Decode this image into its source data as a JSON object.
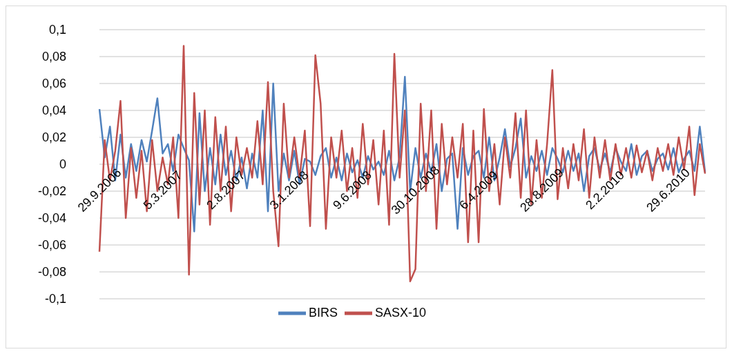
{
  "chart_data": {
    "type": "line",
    "categories": [
      "29.9.2006",
      null,
      null,
      null,
      null,
      null,
      null,
      null,
      null,
      null,
      null,
      null,
      "5.3.2007",
      null,
      null,
      null,
      null,
      null,
      null,
      null,
      null,
      null,
      null,
      null,
      "2.8.2007",
      null,
      null,
      null,
      null,
      null,
      null,
      null,
      null,
      null,
      null,
      null,
      "3.1.2008",
      null,
      null,
      null,
      null,
      null,
      null,
      null,
      null,
      null,
      null,
      null,
      "9.6.2008",
      null,
      null,
      null,
      null,
      null,
      null,
      null,
      null,
      null,
      null,
      null,
      "30.10.2008",
      null,
      null,
      null,
      null,
      null,
      null,
      null,
      null,
      null,
      null,
      null,
      "6.4.2009",
      null,
      null,
      null,
      null,
      null,
      null,
      null,
      null,
      null,
      null,
      null,
      "28.8.2009",
      null,
      null,
      null,
      null,
      null,
      null,
      null,
      null,
      null,
      null,
      null,
      "2.2.2010",
      null,
      null,
      null,
      null,
      null,
      null,
      null,
      null,
      null,
      null,
      null,
      "29.6.2010",
      null,
      null,
      null,
      null,
      null,
      null,
      null
    ],
    "series": [
      {
        "name": "BIRS",
        "color": "#4f81bd",
        "values": [
          0.041,
          0.005,
          0.028,
          -0.012,
          0.022,
          -0.01,
          0.015,
          -0.005,
          0.018,
          0.002,
          0.025,
          0.049,
          0.008,
          0.015,
          -0.005,
          0.022,
          0.012,
          0.003,
          -0.05,
          0.038,
          -0.02,
          0.012,
          -0.015,
          0.022,
          -0.008,
          0.01,
          -0.012,
          0.005,
          -0.018,
          0.008,
          -0.01,
          0.04,
          -0.035,
          0.06,
          -0.02,
          0.008,
          -0.012,
          0.01,
          -0.015,
          0.004,
          0.002,
          -0.008,
          0.006,
          0.012,
          -0.01,
          0.005,
          -0.012,
          0.008,
          -0.006,
          0.003,
          -0.01,
          0.006,
          -0.004,
          0.002,
          -0.008,
          0.01,
          -0.012,
          0.005,
          0.065,
          -0.02,
          0.012,
          -0.01,
          0.008,
          -0.006,
          0.015,
          -0.02,
          0.004,
          0.008,
          -0.048,
          0.012,
          -0.008,
          0.006,
          0.01,
          -0.01,
          0.02,
          -0.012,
          0.005,
          0.026,
          -0.002,
          0.012,
          0.034,
          -0.01,
          0.006,
          -0.005,
          0.01,
          -0.008,
          0.012,
          0.004,
          -0.006,
          0.01,
          -0.005,
          0.008,
          -0.02,
          0.006,
          0.012,
          -0.004,
          0.008,
          -0.006,
          0.012,
          0.002,
          -0.005,
          0.015,
          -0.008,
          0.006,
          0.01,
          -0.005,
          0.004,
          0.008,
          -0.004,
          0.012,
          -0.006,
          0.004,
          0.01,
          -0.005,
          0.028,
          -0.006
        ]
      },
      {
        "name": "SASX-10",
        "color": "#c0504d",
        "values": [
          -0.065,
          0.018,
          -0.012,
          0.01,
          0.047,
          -0.04,
          0.012,
          -0.025,
          0.01,
          -0.035,
          0.018,
          -0.02,
          0.005,
          -0.015,
          0.02,
          -0.04,
          0.088,
          -0.082,
          0.053,
          -0.03,
          0.04,
          -0.045,
          0.035,
          -0.02,
          0.028,
          -0.035,
          0.02,
          -0.008,
          0.012,
          -0.01,
          0.032,
          -0.015,
          0.061,
          -0.02,
          -0.061,
          0.045,
          -0.01,
          0.02,
          -0.01,
          0.025,
          -0.046,
          0.081,
          0.045,
          -0.048,
          0.02,
          -0.01,
          0.025,
          -0.02,
          0.012,
          -0.025,
          0.03,
          -0.015,
          0.018,
          -0.03,
          0.025,
          -0.045,
          0.082,
          -0.01,
          0.04,
          -0.087,
          -0.078,
          0.045,
          -0.02,
          0.04,
          -0.048,
          0.03,
          -0.015,
          0.02,
          -0.01,
          0.03,
          -0.058,
          0.025,
          -0.058,
          0.041,
          -0.02,
          0.015,
          -0.03,
          0.02,
          -0.01,
          0.038,
          -0.025,
          0.04,
          -0.03,
          0.018,
          -0.025,
          0.015,
          0.07,
          -0.026,
          0.012,
          -0.018,
          0.015,
          -0.012,
          0.026,
          -0.025,
          0.02,
          -0.01,
          0.018,
          -0.012,
          0.015,
          -0.008,
          0.012,
          -0.01,
          0.014,
          -0.006,
          0.01,
          -0.012,
          0.012,
          -0.005,
          0.015,
          -0.008,
          0.02,
          -0.004,
          0.028,
          -0.023,
          0.015,
          -0.007
        ]
      }
    ],
    "ylim": [
      -0.1,
      0.1
    ],
    "yticks": [
      {
        "value": -0.1,
        "label": "-0,1"
      },
      {
        "value": -0.08,
        "label": "-0,08"
      },
      {
        "value": -0.06,
        "label": "-0,06"
      },
      {
        "value": -0.04,
        "label": "-0,04"
      },
      {
        "value": -0.02,
        "label": "-0,02"
      },
      {
        "value": 0,
        "label": "0"
      },
      {
        "value": 0.02,
        "label": "0,02"
      },
      {
        "value": 0.04,
        "label": "0,04"
      },
      {
        "value": 0.06,
        "label": "0,06"
      },
      {
        "value": 0.08,
        "label": "0,08"
      },
      {
        "value": 0.1,
        "label": "0,1"
      }
    ],
    "grid": "y",
    "legend": "bottom",
    "marker": "none",
    "line_style": "solid"
  }
}
